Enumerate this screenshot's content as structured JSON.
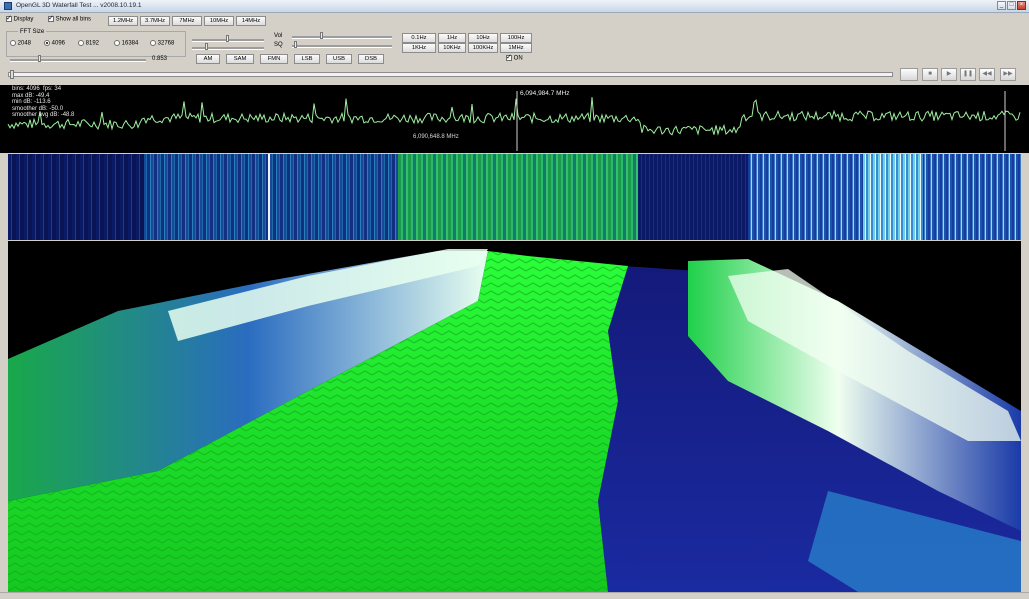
{
  "window": {
    "title": "OpenGL 3D Waterfall Test ... v2008.10.19.1",
    "controls": [
      "minimize-icon",
      "maximize-icon",
      "close-icon"
    ]
  },
  "toolbar": {
    "display_label": "Display",
    "display_checked": true,
    "show_all_bins_label": "Show all bins",
    "show_all_bins_checked": true,
    "bandwidth_buttons": [
      "1.2MHz",
      "3.7MHz",
      "7MHz",
      "10MHz",
      "14MHz"
    ]
  },
  "fft": {
    "group_label": "FFT Size",
    "options": [
      "2048",
      "4096",
      "8192",
      "16384",
      "32768"
    ],
    "selected": "4096",
    "value": "0.853"
  },
  "audio": {
    "vol_label": "Vol",
    "sq_label": "SQ",
    "modes": [
      "AM",
      "SAM",
      "FMN",
      "LSB",
      "USB",
      "DSB"
    ]
  },
  "step": {
    "row1": [
      "0.1Hz",
      "1Hz",
      "10Hz",
      "100Hz"
    ],
    "row2": [
      "1KHz",
      "10KHz",
      "100KHz",
      "1MHz"
    ],
    "on_label": "ON",
    "on_checked": true
  },
  "playback": {
    "buttons": [
      "stop-icon",
      "play-icon",
      "pause-icon",
      "rewind-icon",
      "fast-forward-icon"
    ]
  },
  "spectrum": {
    "stats": {
      "bins": "bins: 4096",
      "fps": "fps: 34",
      "max_db": "max dB: -49.4",
      "min_db": "min dB: -113.6",
      "smoother_db": "smoother dB: -50.0",
      "smoother_avg_db": "smoother avg dB: -48.8"
    },
    "cursor_freq": "6,094,984.7 MHz",
    "center_freq": "6,090,648.8 MHz",
    "trace_color": "#9ef0a0"
  },
  "colors": {
    "green": "#1ff02a",
    "blue": "#1a2aa0",
    "white": "#f2fff2"
  }
}
